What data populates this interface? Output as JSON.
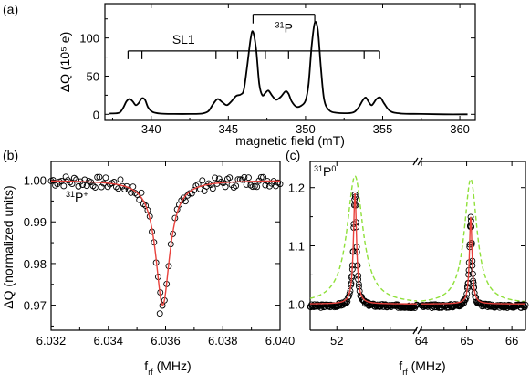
{
  "panels": {
    "a": "(a)",
    "b": "(b)",
    "c": "(c)"
  },
  "chart_data": [
    {
      "id": "a",
      "type": "line",
      "title": "",
      "xlabel": "magnetic field (mT)",
      "ylabel": "ΔQ (10⁵ e)",
      "xlim": [
        337,
        361
      ],
      "ylim": [
        -8,
        145
      ],
      "xticks": [
        340,
        345,
        350,
        355,
        360
      ],
      "yticks": [
        0,
        50,
        100
      ],
      "xtick_labels": [
        "340",
        "345",
        "350",
        "355",
        "360"
      ],
      "ytick_labels": [
        "0",
        "50",
        "100"
      ],
      "color": "#000000",
      "series": [
        {
          "values": [
            [
              337.3,
              1.0
            ],
            [
              337.8,
              1.5
            ],
            [
              338.0,
              3.0
            ],
            [
              338.2,
              9.0
            ],
            [
              338.4,
              17.0
            ],
            [
              338.6,
              20.0
            ],
            [
              338.8,
              17.0
            ],
            [
              339.0,
              12.0
            ],
            [
              339.2,
              15.0
            ],
            [
              339.4,
              21.0
            ],
            [
              339.6,
              19.0
            ],
            [
              339.8,
              9.0
            ],
            [
              340.1,
              3.0
            ],
            [
              340.6,
              1.0
            ],
            [
              341.5,
              0.5
            ],
            [
              342.5,
              0.5
            ],
            [
              343.3,
              1.0
            ],
            [
              343.7,
              4.0
            ],
            [
              344.0,
              13.0
            ],
            [
              344.3,
              20.0
            ],
            [
              344.6,
              16.0
            ],
            [
              344.9,
              12.0
            ],
            [
              345.2,
              17.0
            ],
            [
              345.5,
              24.0
            ],
            [
              345.8,
              26.0
            ],
            [
              346.0,
              32.0
            ],
            [
              346.2,
              60.0
            ],
            [
              346.45,
              100.0
            ],
            [
              346.6,
              108.0
            ],
            [
              346.8,
              85.0
            ],
            [
              347.0,
              40.0
            ],
            [
              347.2,
              25.0
            ],
            [
              347.4,
              28.0
            ],
            [
              347.6,
              31.0
            ],
            [
              347.85,
              24.0
            ],
            [
              348.1,
              19.0
            ],
            [
              348.4,
              23.0
            ],
            [
              348.7,
              30.0
            ],
            [
              348.9,
              27.0
            ],
            [
              349.1,
              17.0
            ],
            [
              349.4,
              10.0
            ],
            [
              349.7,
              11.0
            ],
            [
              350.0,
              18.0
            ],
            [
              350.2,
              40.0
            ],
            [
              350.4,
              90.0
            ],
            [
              350.6,
              120.0
            ],
            [
              350.8,
              110.0
            ],
            [
              351.0,
              60.0
            ],
            [
              351.2,
              20.0
            ],
            [
              351.5,
              6.0
            ],
            [
              352.0,
              2.0
            ],
            [
              353.0,
              2.0
            ],
            [
              353.4,
              8.0
            ],
            [
              353.7,
              18.0
            ],
            [
              353.9,
              22.0
            ],
            [
              354.1,
              16.0
            ],
            [
              354.3,
              12.0
            ],
            [
              354.6,
              20.0
            ],
            [
              354.85,
              22.0
            ],
            [
              355.1,
              14.0
            ],
            [
              355.5,
              4.0
            ],
            [
              356.2,
              1.0
            ],
            [
              357.5,
              0.5
            ],
            [
              359.0,
              0.0
            ],
            [
              360.5,
              0.0
            ]
          ]
        }
      ],
      "annotations": {
        "sl1_label": "SL1",
        "sl1_level": 83,
        "sl1_range": [
          338.5,
          354.8
        ],
        "sl1_ticks": [
          338.5,
          339.4,
          344.2,
          345.6,
          347.4,
          348.9,
          353.8,
          354.8
        ],
        "p31_label_pre": "31",
        "p31_label_main": "P",
        "p31_level": 131,
        "p31_range": [
          346.6,
          350.6
        ]
      }
    },
    {
      "id": "b",
      "type": "scatter",
      "title": "",
      "xlabel_main": "f",
      "xlabel_sub": "rf",
      "xlabel_unit": " (MHz)",
      "ylabel": "ΔQ (normalized units)",
      "xlim": [
        6.032,
        6.04
      ],
      "ylim": [
        0.964,
        1.0045
      ],
      "xticks": [
        6.032,
        6.034,
        6.036,
        6.038,
        6.04
      ],
      "yticks": [
        0.97,
        0.98,
        0.99,
        1.0
      ],
      "xtick_labels": [
        "6.032",
        "6.034",
        "6.036",
        "6.038",
        "6.040"
      ],
      "ytick_labels": [
        "0.97",
        "0.98",
        "0.99",
        "1.00"
      ],
      "annotation_pre": "31",
      "annotation_main": "P",
      "annotation_sup": "+",
      "fit": {
        "color": "#e8413c",
        "center": 6.0359,
        "width": 0.0003,
        "depth": 0.03,
        "baseline": 1.0
      },
      "points_color": "#000000"
    },
    {
      "id": "c",
      "type": "scatter",
      "title": "",
      "xlabel_main": "f",
      "xlabel_sub": "rf",
      "xlabel_unit": " (MHz)",
      "ylim": [
        0.955,
        1.245
      ],
      "yticks": [
        1.0,
        1.1,
        1.2
      ],
      "ytick_labels": [
        "1.0",
        "1.1",
        "1.2"
      ],
      "broken_axis": true,
      "segments": [
        {
          "xlim": [
            51.5,
            53.5
          ],
          "xticks": [
            52
          ],
          "xtick_labels": [
            "52"
          ]
        },
        {
          "xlim": [
            64.0,
            66.3
          ],
          "xticks": [
            64,
            65,
            66
          ],
          "xtick_labels": [
            "64",
            "65",
            "66"
          ]
        }
      ],
      "annotation_pre": "31",
      "annotation_main": "P",
      "annotation_sup": "0",
      "peaks": [
        {
          "center": 52.34,
          "fit_height": 0.19,
          "fit_width": 0.035,
          "dash_height": 0.22,
          "dash_width": 0.18
        },
        {
          "center": 65.09,
          "fit_height": 0.15,
          "fit_width": 0.035,
          "dash_height": 0.215,
          "dash_width": 0.17
        }
      ],
      "fit_color": "#e8413c",
      "dashed_color": "#8fe03a",
      "points_color": "#000000"
    }
  ]
}
